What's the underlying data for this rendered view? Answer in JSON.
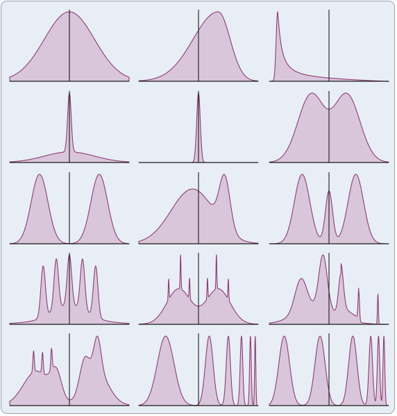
{
  "figure": {
    "background": "#e8eef6",
    "border_color": "#9aa3ad",
    "fill_color": "#d9c6db",
    "stroke_color": "#8e3b73",
    "axis_color": "#1a1a1a"
  },
  "panels": [
    {
      "id": "normal",
      "kind": "density"
    },
    {
      "id": "skewed",
      "kind": "density"
    },
    {
      "id": "heavy-tail",
      "kind": "density"
    },
    {
      "id": "spike-on-broad",
      "kind": "density"
    },
    {
      "id": "narrow-spike",
      "kind": "density"
    },
    {
      "id": "bimodal-overlap",
      "kind": "density"
    },
    {
      "id": "bimodal-separated",
      "kind": "density"
    },
    {
      "id": "asymmetric-bimodal",
      "kind": "density"
    },
    {
      "id": "trimodal",
      "kind": "density"
    },
    {
      "id": "comb",
      "kind": "density"
    },
    {
      "id": "bimodal-with-spikes",
      "kind": "density"
    },
    {
      "id": "multimodal-irregular",
      "kind": "density"
    },
    {
      "id": "bimodal-with-spikes-2",
      "kind": "density"
    },
    {
      "id": "chirp-right",
      "kind": "density"
    },
    {
      "id": "chirp-symmetric",
      "kind": "density"
    }
  ]
}
